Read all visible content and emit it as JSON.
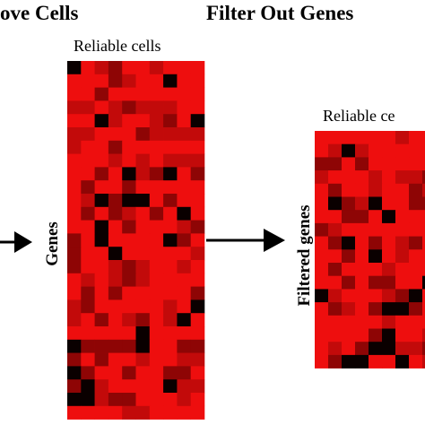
{
  "header": {
    "left_title": "ove  Cells",
    "right_title": "Filter Out Genes"
  },
  "panels": [
    {
      "column_label": "Reliable cells",
      "row_label": "Genes"
    },
    {
      "column_label": "Reliable ce",
      "row_label": "Filtered genes"
    }
  ]
}
